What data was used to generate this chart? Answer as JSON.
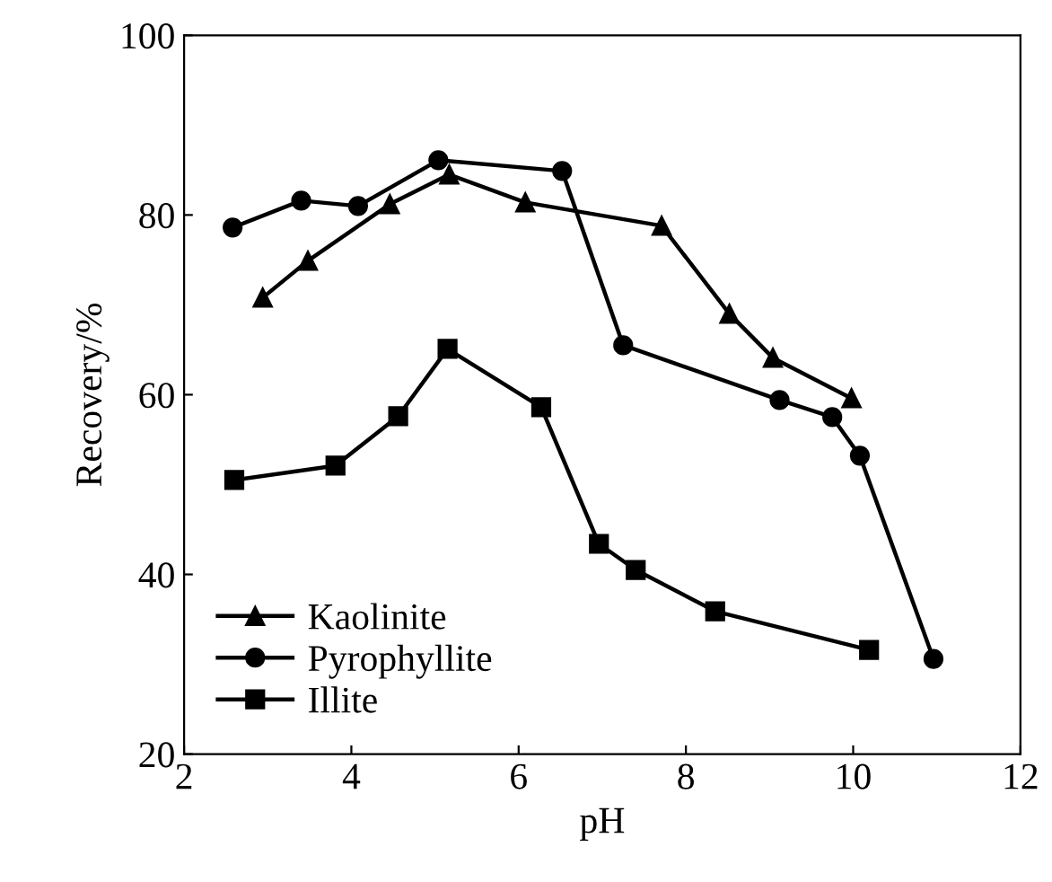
{
  "chart_data": {
    "type": "line",
    "xlabel": "pH",
    "ylabel": "Recovery/%",
    "xlim": [
      2,
      12
    ],
    "ylim": [
      20,
      100
    ],
    "xticks": [
      2,
      4,
      6,
      8,
      10,
      12
    ],
    "yticks": [
      20,
      40,
      60,
      80,
      100
    ],
    "grid": false,
    "legend": "bottom left",
    "line_style": "solid",
    "series": [
      {
        "name": "Kaolinite",
        "color": "#000000",
        "marker": "triangle",
        "x": [
          2.94,
          3.48,
          4.46,
          5.17,
          6.08,
          7.71,
          8.52,
          9.04,
          9.98
        ],
        "values": [
          70.8,
          74.9,
          81.2,
          84.5,
          81.4,
          78.8,
          69.0,
          64.1,
          59.6
        ]
      },
      {
        "name": "Pyrophyllite",
        "color": "#000000",
        "marker": "circle",
        "x": [
          2.58,
          3.4,
          4.08,
          5.04,
          6.52,
          7.25,
          9.12,
          9.75,
          10.08,
          10.96
        ],
        "values": [
          78.6,
          81.6,
          81.0,
          86.1,
          84.9,
          65.5,
          59.4,
          57.5,
          53.2,
          30.6
        ]
      },
      {
        "name": "Illite",
        "color": "#000000",
        "marker": "square",
        "x": [
          2.6,
          3.81,
          4.56,
          5.15,
          6.27,
          6.96,
          7.4,
          8.35,
          10.19
        ],
        "values": [
          50.5,
          52.1,
          57.6,
          65.1,
          58.6,
          43.4,
          40.5,
          35.9,
          31.6
        ]
      }
    ]
  }
}
